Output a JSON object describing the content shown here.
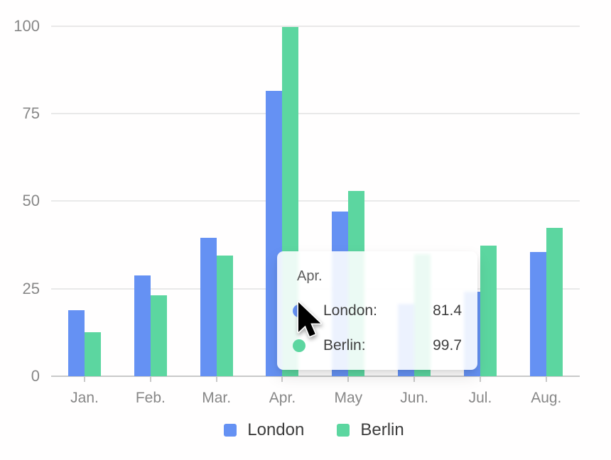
{
  "chart_data": {
    "type": "bar",
    "title": "",
    "categories": [
      "Jan.",
      "Feb.",
      "Mar.",
      "Apr.",
      "May",
      "Jun.",
      "Jul.",
      "Aug."
    ],
    "series": [
      {
        "name": "London",
        "color": "#6591F3",
        "values": [
          18.9,
          28.7,
          39.5,
          81.4,
          47.1,
          20.7,
          24.1,
          35.5
        ]
      },
      {
        "name": "Berlin",
        "color": "#5CD6A0",
        "values": [
          12.6,
          23.1,
          34.5,
          99.7,
          52.9,
          34.8,
          37.3,
          42.4
        ]
      }
    ],
    "xlabel": "",
    "ylabel": "",
    "ylim": [
      0,
      100
    ],
    "yticks": [
      0,
      25,
      50,
      75,
      100
    ],
    "grid": true,
    "legend_position": "bottom"
  },
  "tooltip": {
    "title": "Apr.",
    "rows": [
      {
        "label": "London:",
        "value": "81.4",
        "color": "#6591F3"
      },
      {
        "label": "Berlin:",
        "value": "99.7",
        "color": "#5CD6A0"
      }
    ]
  },
  "colors": {
    "london": "#6591F3",
    "berlin": "#5CD6A0",
    "axis_text": "#878787",
    "gridline": "#e9e9e9",
    "axis_line": "#c9c9c9"
  }
}
